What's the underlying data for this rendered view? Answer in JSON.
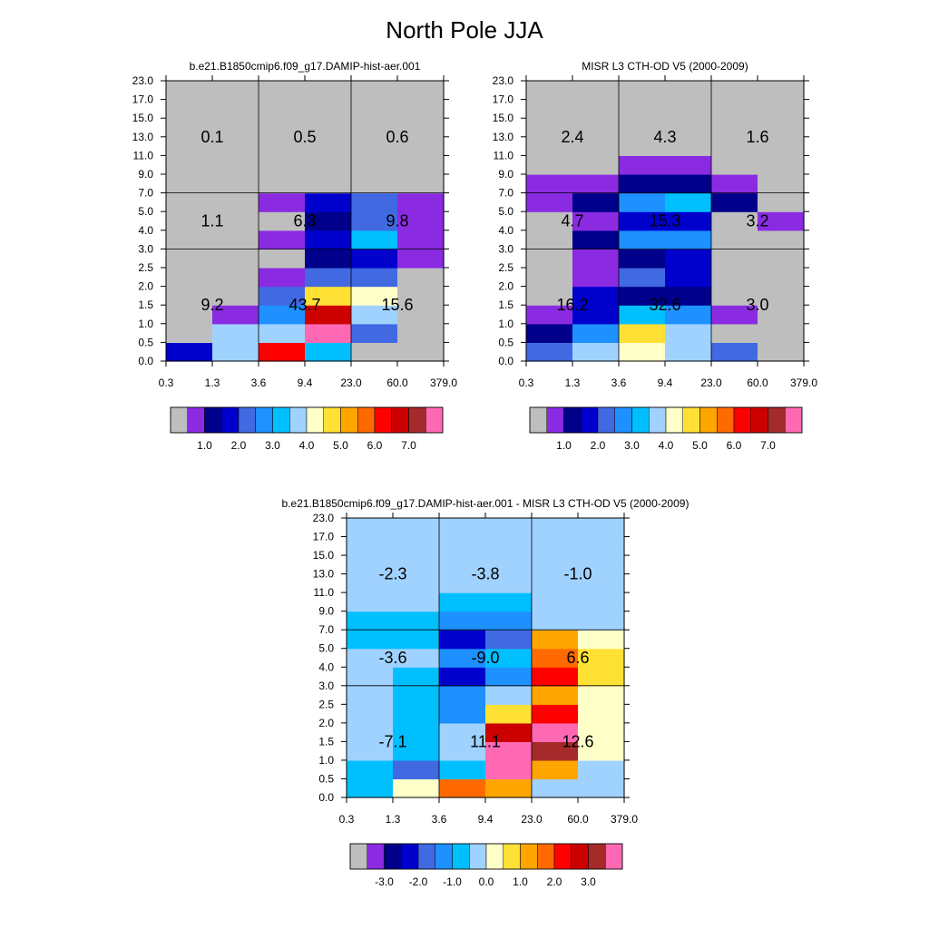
{
  "figure": {
    "title": "North Pole JJA"
  },
  "colormap": {
    "colors": [
      "#bebebe",
      "#8a2be2",
      "#00008b",
      "#0000cd",
      "#4169e1",
      "#1e90ff",
      "#00bfff",
      "#a0d2ff",
      "#ffffc8",
      "#ffe135",
      "#ffa500",
      "#ff6a00",
      "#ff0000",
      "#cd0000",
      "#a52a2a",
      "#ff69b4"
    ]
  },
  "chart_data": [
    {
      "type": "heatmap",
      "title": "b.e21.B1850cmip6.f09_g17.DAMIP-hist-aer.001",
      "x_ticks": [
        "0.3",
        "1.3",
        "3.6",
        "9.4",
        "23.0",
        "60.0",
        "379.0"
      ],
      "y_ticks": [
        "0.0",
        "0.5",
        "1.0",
        "1.5",
        "2.0",
        "2.5",
        "3.0",
        "4.0",
        "5.0",
        "7.0",
        "9.0",
        "11.0",
        "13.0",
        "15.0",
        "17.0",
        "23.0"
      ],
      "group_x_bounds": [
        0,
        2,
        4,
        6
      ],
      "group_y_bounds": [
        0,
        6,
        9,
        15
      ],
      "cell_color_index_rows_bottom_to_top": [
        [
          3,
          7,
          12,
          6,
          0,
          0
        ],
        [
          0,
          7,
          7,
          15,
          4,
          0
        ],
        [
          0,
          1,
          5,
          13,
          7,
          0
        ],
        [
          0,
          0,
          4,
          9,
          8,
          0
        ],
        [
          0,
          0,
          1,
          4,
          4,
          0
        ],
        [
          0,
          0,
          0,
          2,
          3,
          1
        ],
        [
          0,
          0,
          1,
          3,
          6,
          1
        ],
        [
          0,
          0,
          0,
          2,
          4,
          1
        ],
        [
          0,
          0,
          1,
          3,
          4,
          1
        ],
        [
          0,
          0,
          0,
          0,
          0,
          0
        ],
        [
          0,
          0,
          0,
          0,
          0,
          0
        ],
        [
          0,
          0,
          0,
          0,
          0,
          0
        ],
        [
          0,
          0,
          0,
          0,
          0,
          0
        ],
        [
          0,
          0,
          0,
          0,
          0,
          0
        ],
        [
          0,
          0,
          0,
          0,
          0,
          0
        ]
      ],
      "group_labels": [
        {
          "col": 0,
          "row": 0,
          "text": "9.2"
        },
        {
          "col": 1,
          "row": 0,
          "text": "43.7"
        },
        {
          "col": 2,
          "row": 0,
          "text": "15.6"
        },
        {
          "col": 0,
          "row": 1,
          "text": "1.1"
        },
        {
          "col": 1,
          "row": 1,
          "text": "6.3"
        },
        {
          "col": 2,
          "row": 1,
          "text": "9.8"
        },
        {
          "col": 0,
          "row": 2,
          "text": "0.1"
        },
        {
          "col": 1,
          "row": 2,
          "text": "0.5"
        },
        {
          "col": 2,
          "row": 2,
          "text": "0.6"
        }
      ],
      "colorbar_labels": [
        "1.0",
        "2.0",
        "3.0",
        "4.0",
        "5.0",
        "6.0",
        "7.0"
      ]
    },
    {
      "type": "heatmap",
      "title": "MISR L3 CTH-OD V5 (2000-2009)",
      "x_ticks": [
        "0.3",
        "1.3",
        "3.6",
        "9.4",
        "23.0",
        "60.0",
        "379.0"
      ],
      "y_ticks": [
        "0.0",
        "0.5",
        "1.0",
        "1.5",
        "2.0",
        "2.5",
        "3.0",
        "4.0",
        "5.0",
        "7.0",
        "9.0",
        "11.0",
        "13.0",
        "15.0",
        "17.0",
        "23.0"
      ],
      "group_x_bounds": [
        0,
        2,
        4,
        6
      ],
      "group_y_bounds": [
        0,
        6,
        9,
        15
      ],
      "cell_color_index_rows_bottom_to_top": [
        [
          4,
          7,
          8,
          7,
          4,
          0
        ],
        [
          2,
          5,
          9,
          7,
          0,
          0
        ],
        [
          1,
          3,
          6,
          5,
          1,
          0
        ],
        [
          0,
          3,
          2,
          2,
          0,
          0
        ],
        [
          0,
          1,
          4,
          3,
          0,
          0
        ],
        [
          0,
          1,
          2,
          3,
          0,
          0
        ],
        [
          0,
          2,
          5,
          5,
          0,
          0
        ],
        [
          0,
          1,
          3,
          3,
          0,
          1
        ],
        [
          1,
          2,
          5,
          6,
          2,
          0
        ],
        [
          1,
          1,
          2,
          2,
          1,
          0
        ],
        [
          0,
          0,
          1,
          1,
          0,
          0
        ],
        [
          0,
          0,
          0,
          0,
          0,
          0
        ],
        [
          0,
          0,
          0,
          0,
          0,
          0
        ],
        [
          0,
          0,
          0,
          0,
          0,
          0
        ],
        [
          0,
          0,
          0,
          0,
          0,
          0
        ]
      ],
      "group_labels": [
        {
          "col": 0,
          "row": 0,
          "text": "16.2"
        },
        {
          "col": 1,
          "row": 0,
          "text": "32.6"
        },
        {
          "col": 2,
          "row": 0,
          "text": "3.0"
        },
        {
          "col": 0,
          "row": 1,
          "text": "4.7"
        },
        {
          "col": 1,
          "row": 1,
          "text": "15.3"
        },
        {
          "col": 2,
          "row": 1,
          "text": "3.2"
        },
        {
          "col": 0,
          "row": 2,
          "text": "2.4"
        },
        {
          "col": 1,
          "row": 2,
          "text": "4.3"
        },
        {
          "col": 2,
          "row": 2,
          "text": "1.6"
        }
      ],
      "colorbar_labels": [
        "1.0",
        "2.0",
        "3.0",
        "4.0",
        "5.0",
        "6.0",
        "7.0"
      ]
    },
    {
      "type": "heatmap",
      "title": "b.e21.B1850cmip6.f09_g17.DAMIP-hist-aer.001 - MISR L3 CTH-OD V5 (2000-2009)",
      "x_ticks": [
        "0.3",
        "1.3",
        "3.6",
        "9.4",
        "23.0",
        "60.0",
        "379.0"
      ],
      "y_ticks": [
        "0.0",
        "0.5",
        "1.0",
        "1.5",
        "2.0",
        "2.5",
        "3.0",
        "4.0",
        "5.0",
        "7.0",
        "9.0",
        "11.0",
        "13.0",
        "15.0",
        "17.0",
        "23.0"
      ],
      "group_x_bounds": [
        0,
        2,
        4,
        6
      ],
      "group_y_bounds": [
        0,
        6,
        9,
        15
      ],
      "cell_color_index_rows_bottom_to_top": [
        [
          6,
          8,
          11,
          10,
          7,
          7
        ],
        [
          6,
          4,
          6,
          15,
          10,
          7
        ],
        [
          7,
          6,
          7,
          15,
          14,
          8
        ],
        [
          7,
          6,
          7,
          13,
          15,
          8
        ],
        [
          7,
          6,
          5,
          9,
          12,
          8
        ],
        [
          7,
          6,
          5,
          7,
          10,
          8
        ],
        [
          7,
          6,
          3,
          5,
          12,
          9
        ],
        [
          7,
          7,
          5,
          6,
          11,
          9
        ],
        [
          6,
          6,
          3,
          4,
          10,
          8
        ],
        [
          6,
          6,
          5,
          5,
          7,
          7
        ],
        [
          7,
          7,
          6,
          6,
          7,
          7
        ],
        [
          7,
          7,
          7,
          7,
          7,
          7
        ],
        [
          7,
          7,
          7,
          7,
          7,
          7
        ],
        [
          7,
          7,
          7,
          7,
          7,
          7
        ],
        [
          7,
          7,
          7,
          7,
          7,
          7
        ]
      ],
      "group_labels": [
        {
          "col": 0,
          "row": 0,
          "text": "-7.1"
        },
        {
          "col": 1,
          "row": 0,
          "text": "11.1"
        },
        {
          "col": 2,
          "row": 0,
          "text": "12.6"
        },
        {
          "col": 0,
          "row": 1,
          "text": "-3.6"
        },
        {
          "col": 1,
          "row": 1,
          "text": "-9.0"
        },
        {
          "col": 2,
          "row": 1,
          "text": "6.6"
        },
        {
          "col": 0,
          "row": 2,
          "text": "-2.3"
        },
        {
          "col": 1,
          "row": 2,
          "text": "-3.8"
        },
        {
          "col": 2,
          "row": 2,
          "text": "-1.0"
        }
      ],
      "colorbar_labels": [
        "-3.0",
        "-2.0",
        "-1.0",
        "0.0",
        "1.0",
        "2.0",
        "3.0"
      ]
    }
  ]
}
